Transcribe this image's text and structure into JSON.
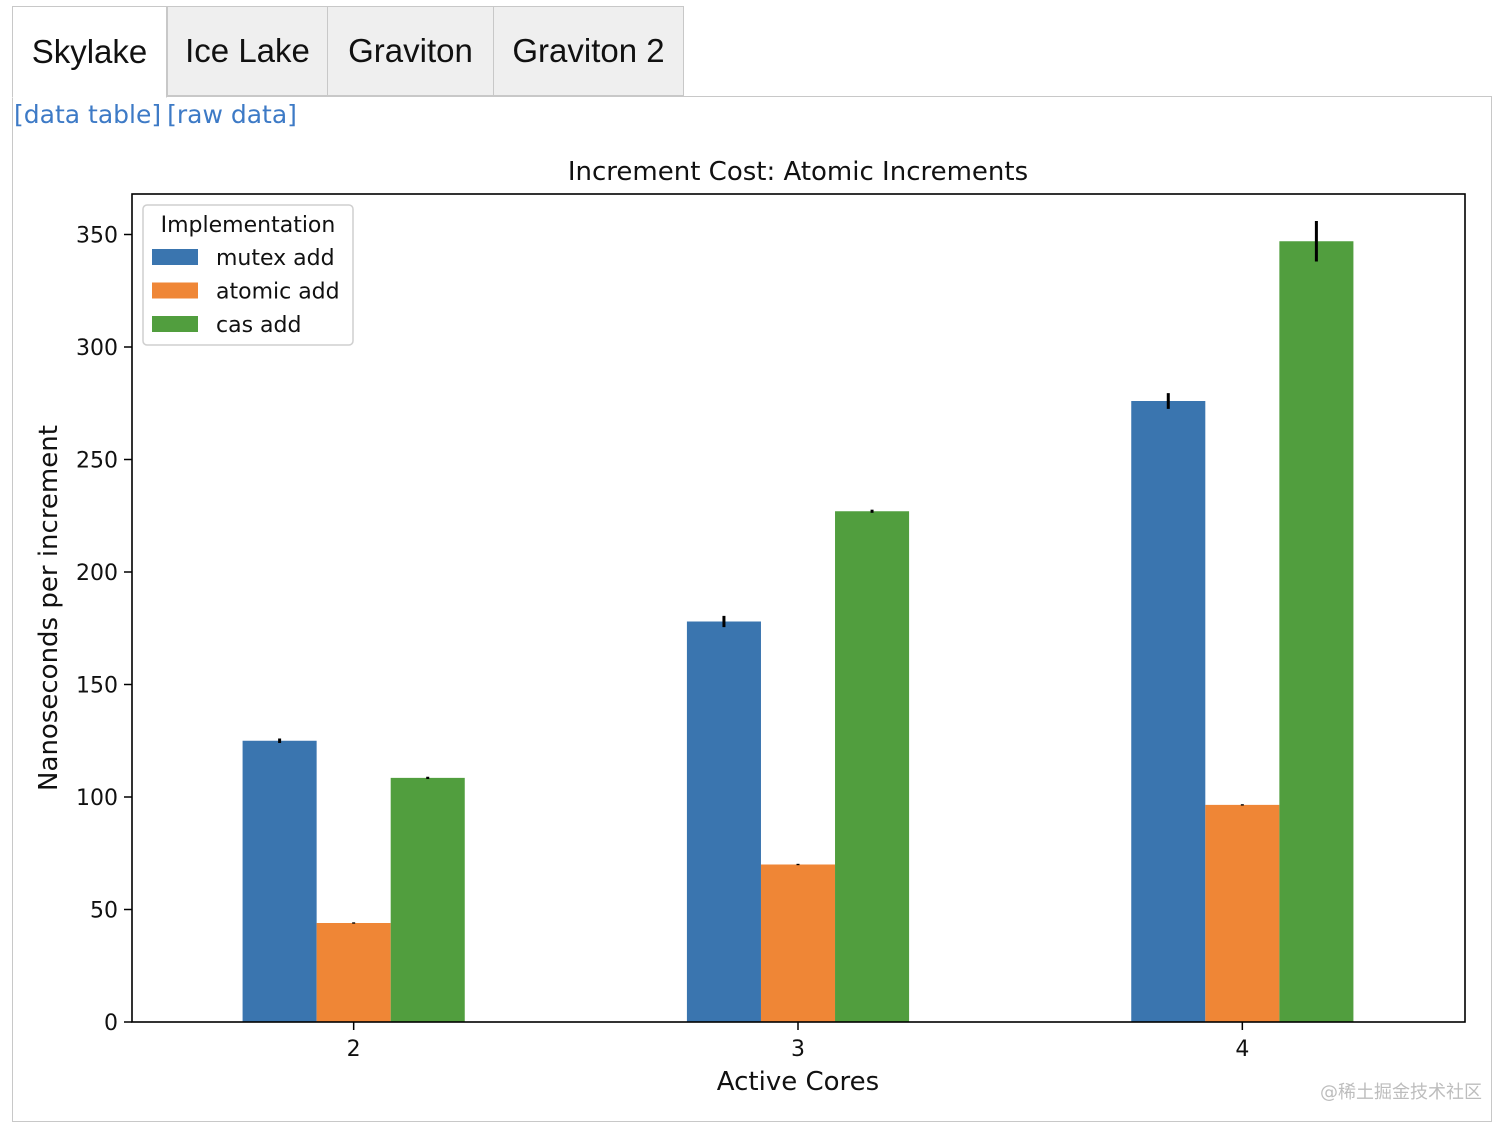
{
  "tabs": [
    {
      "label": "Skylake",
      "active": true
    },
    {
      "label": "Ice Lake",
      "active": false
    },
    {
      "label": "Graviton",
      "active": false
    },
    {
      "label": "Graviton 2",
      "active": false
    }
  ],
  "links": {
    "data_table": "[data table]",
    "raw_data": "[raw data]"
  },
  "watermark": "@稀土掘金技术社区",
  "chart_data": {
    "type": "bar",
    "title": "Increment Cost: Atomic Increments",
    "xlabel": "Active Cores",
    "ylabel": "Nanoseconds per increment",
    "categories": [
      "2",
      "3",
      "4"
    ],
    "ylim": [
      0,
      368
    ],
    "yticks": [
      0,
      50,
      100,
      150,
      200,
      250,
      300,
      350
    ],
    "grid": false,
    "legend": {
      "title": "Implementation",
      "placement": "top-left"
    },
    "series": [
      {
        "name": "mutex add",
        "color": "#3a75af",
        "values": [
          125,
          178,
          276
        ],
        "errors": [
          1,
          2.5,
          3.5
        ]
      },
      {
        "name": "atomic add",
        "color": "#ef8636",
        "values": [
          44,
          70,
          96.5
        ],
        "errors": [
          0.3,
          0.3,
          0.3
        ]
      },
      {
        "name": "cas add",
        "color": "#519e3e",
        "values": [
          108.5,
          227,
          347
        ],
        "errors": [
          0.5,
          0.7,
          9
        ]
      }
    ]
  }
}
